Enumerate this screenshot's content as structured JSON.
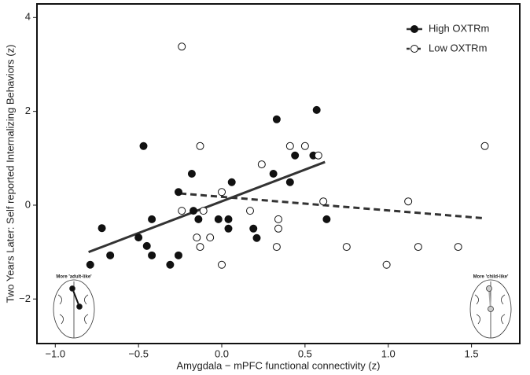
{
  "chart_data": {
    "type": "scatter",
    "x_label": "Amygdala − mPFC functional connectivity (z)",
    "y_label": "Two Years Later: Self reported Internalizing Behaviors (z)",
    "xlim": [
      -1.11,
      1.79
    ],
    "ylim": [
      -2.95,
      4.29
    ],
    "xticks": [
      {
        "value": -1.0,
        "label": "−1.0"
      },
      {
        "value": -0.5,
        "label": "−0.5"
      },
      {
        "value": 0,
        "label": "0.0"
      },
      {
        "value": 0.5,
        "label": "0.5"
      },
      {
        "value": 1.0,
        "label": "1.0"
      },
      {
        "value": 1.5,
        "label": "1.5"
      }
    ],
    "yticks": [
      {
        "value": -2,
        "label": "−2"
      },
      0,
      2,
      4
    ],
    "grid": false,
    "legend": "top-right",
    "series": [
      {
        "name": "High OXTRm",
        "color": "#111111",
        "filled": true,
        "dash": false,
        "x": [
          -0.79,
          -0.72,
          -0.67,
          -0.5,
          -0.47,
          -0.45,
          -0.42,
          -0.42,
          -0.31,
          -0.26,
          -0.26,
          -0.17,
          -0.14,
          -0.18,
          -0.02,
          0.04,
          0.06,
          0.04,
          0.19,
          0.21,
          0.31,
          0.33,
          0.41,
          0.44,
          0.55,
          0.57,
          0.63
        ],
        "values": [
          -1.27,
          -0.49,
          -1.07,
          -0.69,
          1.26,
          -0.87,
          -0.3,
          -1.07,
          -1.27,
          -1.07,
          0.28,
          -0.12,
          -0.3,
          0.67,
          -0.3,
          -0.3,
          0.49,
          -0.5,
          -0.5,
          -0.7,
          0.67,
          1.83,
          0.49,
          1.06,
          1.06,
          2.03,
          -0.3
        ],
        "fit": {
          "x": [
            -0.8,
            0.62
          ],
          "values": [
            -1.0,
            0.92
          ]
        }
      },
      {
        "name": "Low OXTRm",
        "color": "#111111",
        "filled": false,
        "dash": true,
        "x": [
          -0.24,
          -0.24,
          -0.13,
          -0.15,
          -0.13,
          -0.07,
          -0.11,
          0.0,
          0.0,
          0.17,
          0.24,
          0.34,
          0.34,
          0.33,
          0.41,
          0.5,
          0.58,
          0.61,
          0.75,
          0.99,
          1.12,
          1.18,
          1.42,
          1.58
        ],
        "values": [
          3.38,
          -0.12,
          1.26,
          -0.69,
          -0.89,
          -0.69,
          -0.12,
          0.28,
          -1.27,
          -0.12,
          0.87,
          -0.3,
          -0.5,
          -0.89,
          1.26,
          1.26,
          1.06,
          0.08,
          -0.89,
          -1.27,
          0.08,
          -0.89,
          -0.89,
          1.26
        ],
        "fit": {
          "x": [
            -0.25,
            1.58
          ],
          "values": [
            0.25,
            -0.28
          ]
        }
      }
    ],
    "annotations": [
      "More 'adult-like'",
      "More 'child-like'"
    ]
  }
}
